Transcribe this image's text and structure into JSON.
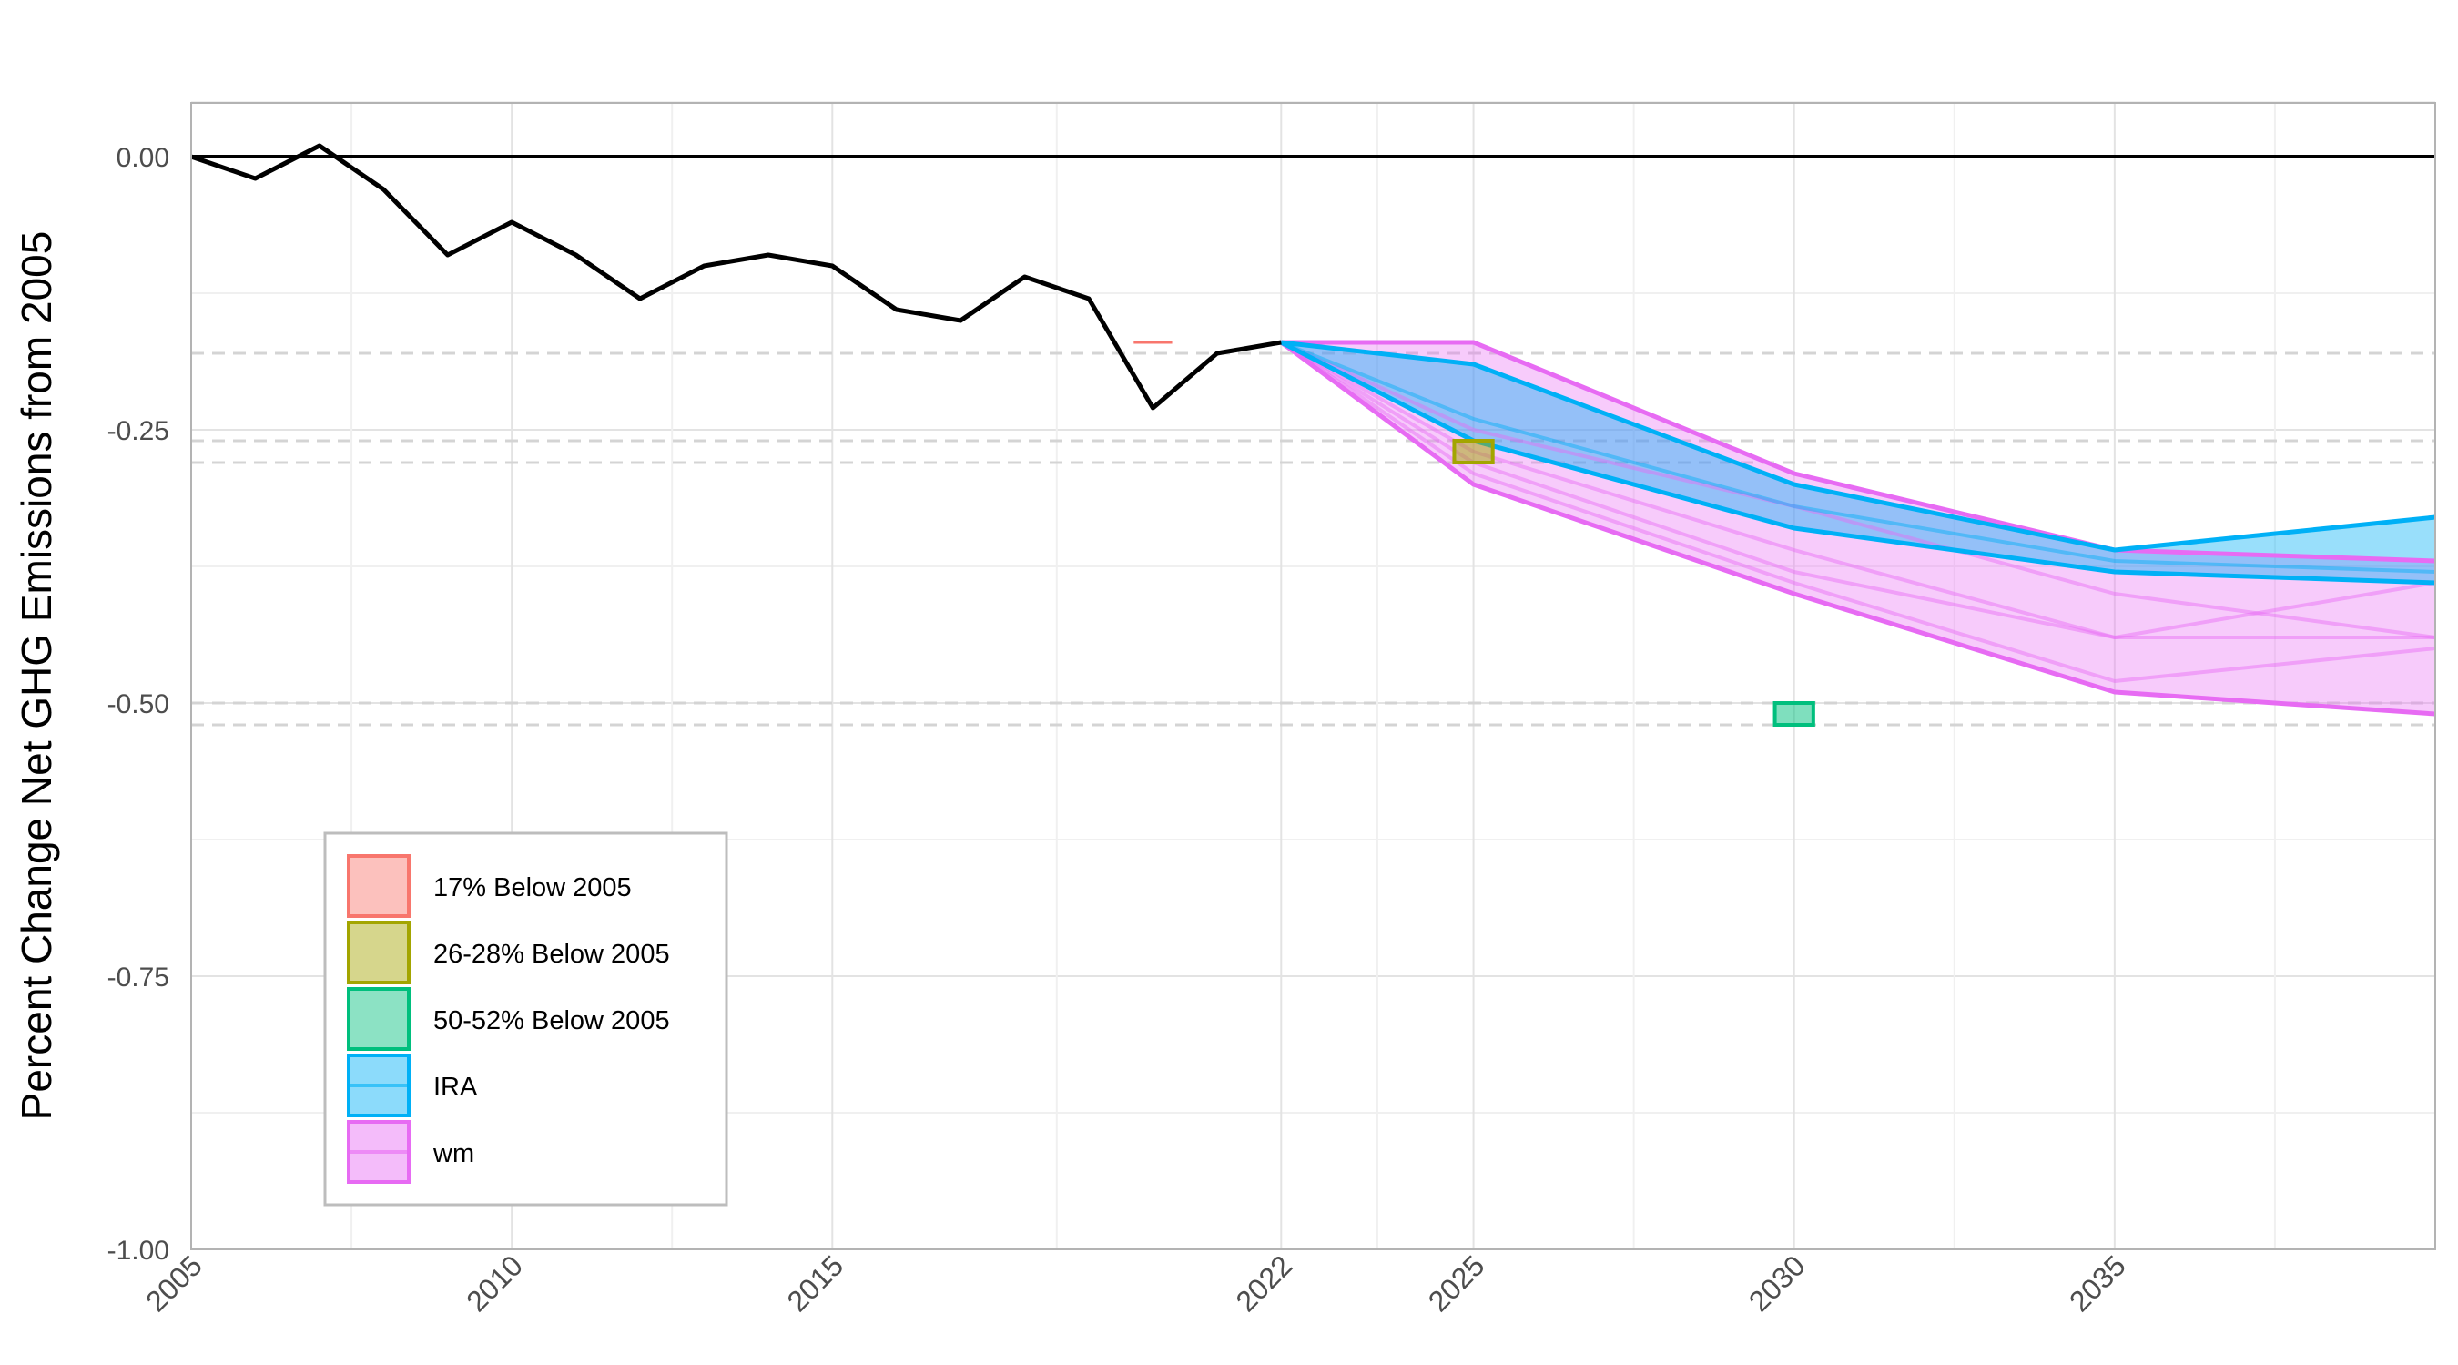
{
  "chart_data": {
    "type": "line",
    "title": "",
    "xlabel": "",
    "ylabel": "Percent Change Net GHG Emissions from 2005",
    "xlim": [
      2005,
      2040
    ],
    "ylim": [
      -1.0,
      0.05
    ],
    "y_ticks": [
      0,
      -0.25,
      -0.5,
      -0.75,
      -1
    ],
    "y_tick_labels": [
      "0.00",
      "-0.25",
      "-0.50",
      "-0.75",
      "-1.00"
    ],
    "x_ticks": [
      2005,
      2010,
      2015,
      2022,
      2025,
      2030,
      2035
    ],
    "x_tick_labels": [
      "2005",
      "2010",
      "2015",
      "2022",
      "2025",
      "2030",
      "2035"
    ],
    "x_minor_gridlines": [
      2007.5,
      2012.5,
      2018.5,
      2023.5,
      2027.5,
      2032.5,
      2037.5
    ],
    "grid": true,
    "reference_lines": {
      "solid": [
        0
      ],
      "dashed": [
        -0.18,
        -0.26,
        -0.28,
        -0.5,
        -0.52
      ]
    },
    "historical": {
      "x": [
        2005,
        2006,
        2007,
        2008,
        2009,
        2010,
        2011,
        2012,
        2013,
        2014,
        2015,
        2016,
        2017,
        2018,
        2019,
        2020,
        2021,
        2022
      ],
      "y": [
        0.0,
        -0.02,
        0.01,
        -0.03,
        -0.09,
        -0.06,
        -0.09,
        -0.13,
        -0.1,
        -0.09,
        -0.1,
        -0.14,
        -0.15,
        -0.11,
        -0.13,
        -0.23,
        -0.18,
        -0.17
      ]
    },
    "targets": [
      {
        "name": "17% Below 2005",
        "x": [
          2019.7,
          2020.3
        ],
        "y": [
          -0.17,
          -0.17
        ],
        "color": "#f8766d"
      },
      {
        "name": "26-28% Below 2005",
        "x": [
          2024.7,
          2025.3
        ],
        "y": [
          -0.26,
          -0.28
        ],
        "color": "#a3a500"
      },
      {
        "name": "50-52% Below 2005",
        "x": [
          2029.7,
          2030.3
        ],
        "y": [
          -0.5,
          -0.52
        ],
        "color": "#00bf7d"
      }
    ],
    "series": [
      {
        "name": "wm",
        "color": "#e76bf3",
        "x": [
          2022,
          2025,
          2030,
          2035,
          2040
        ],
        "upper": [
          -0.17,
          -0.17,
          -0.29,
          -0.36,
          -0.37
        ],
        "lower": [
          -0.17,
          -0.3,
          -0.4,
          -0.49,
          -0.51
        ],
        "lines": [
          [
            -0.17,
            -0.17,
            -0.29,
            -0.36,
            -0.37
          ],
          [
            -0.17,
            -0.25,
            -0.32,
            -0.4,
            -0.44
          ],
          [
            -0.17,
            -0.27,
            -0.36,
            -0.44,
            -0.39
          ],
          [
            -0.17,
            -0.28,
            -0.38,
            -0.44,
            -0.44
          ],
          [
            -0.17,
            -0.29,
            -0.39,
            -0.48,
            -0.45
          ],
          [
            -0.17,
            -0.3,
            -0.4,
            -0.49,
            -0.51
          ]
        ]
      },
      {
        "name": "IRA",
        "color": "#00b0f6",
        "x": [
          2022,
          2025,
          2030,
          2035,
          2040
        ],
        "upper": [
          -0.17,
          -0.19,
          -0.3,
          -0.36,
          -0.33
        ],
        "lower": [
          -0.17,
          -0.26,
          -0.34,
          -0.38,
          -0.39
        ],
        "lines": [
          [
            -0.17,
            -0.19,
            -0.3,
            -0.36,
            -0.33
          ],
          [
            -0.17,
            -0.24,
            -0.32,
            -0.37,
            -0.38
          ],
          [
            -0.17,
            -0.26,
            -0.34,
            -0.38,
            -0.39
          ]
        ]
      }
    ],
    "legend": {
      "position": "bottom-left",
      "entries": [
        {
          "label": "17% Below 2005",
          "color": "#f8766d"
        },
        {
          "label": "26-28% Below 2005",
          "color": "#a3a500"
        },
        {
          "label": "50-52% Below 2005",
          "color": "#00bf7d"
        },
        {
          "label": "IRA",
          "color": "#00b0f6"
        },
        {
          "label": "wm",
          "color": "#e76bf3"
        }
      ]
    }
  }
}
